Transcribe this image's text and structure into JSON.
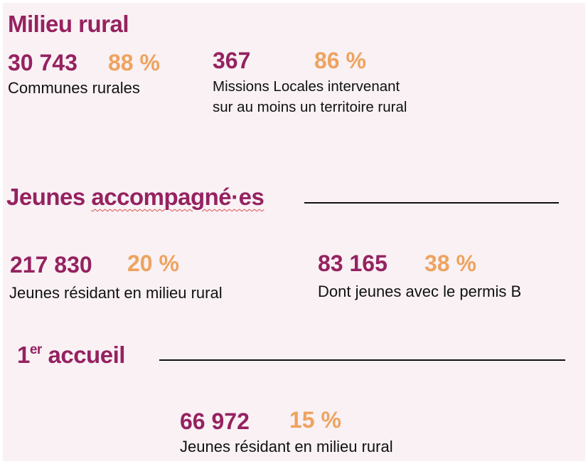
{
  "colors": {
    "background": "#f9f1f4",
    "accent_primary": "#952260",
    "accent_secondary": "#eea35f",
    "text": "#111111",
    "spellcheck_underline": "#d94f4f"
  },
  "rural": {
    "title": "Milieu rural",
    "communes": {
      "value": "30 743",
      "percent": "88 %",
      "label": "Communes rurales"
    },
    "missions": {
      "value": "367",
      "percent": "86 %",
      "label_line1": "Missions Locales intervenant",
      "label_line2": "sur au moins un territoire rural"
    }
  },
  "young": {
    "title_part1": "Jeunes ",
    "title_part2": "accompagné·es",
    "residents": {
      "value": "217 830",
      "percent": "20 %",
      "label": "Jeunes résidant en milieu rural"
    },
    "license": {
      "value": "83 165",
      "percent": "38 %",
      "label": "Dont jeunes avec le permis B"
    }
  },
  "first_welcome": {
    "title_num": "1",
    "title_sup": "er",
    "title_rest": " accueil",
    "residents": {
      "value": "66 972",
      "percent": "15 %",
      "label": "Jeunes résidant en milieu rural"
    }
  }
}
